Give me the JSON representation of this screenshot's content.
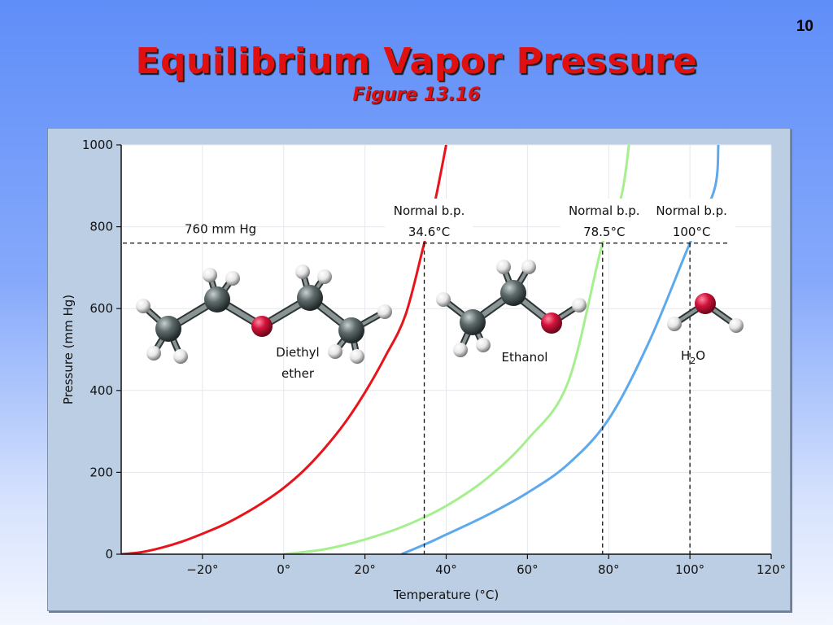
{
  "slide": {
    "number": "10",
    "title": "Equilibrium Vapor Pressure",
    "subtitle": "Figure 13.16"
  },
  "chart_data": {
    "type": "line",
    "xlabel": "Temperature (°C)",
    "ylabel": "Pressure (mm Hg)",
    "xlim": [
      -40,
      120
    ],
    "ylim": [
      0,
      1000
    ],
    "x_ticks": [
      -20,
      0,
      20,
      40,
      60,
      80,
      100,
      120
    ],
    "x_tick_labels": [
      "−20°",
      "0°",
      "20°",
      "40°",
      "60°",
      "80°",
      "100°",
      "120°"
    ],
    "y_ticks": [
      0,
      200,
      400,
      600,
      800,
      1000
    ],
    "y_tick_labels": [
      "0",
      "200",
      "400",
      "600",
      "800",
      "1000"
    ],
    "grid": true,
    "series": [
      {
        "name": "Diethyl ether",
        "color": "#e8141c",
        "points": [
          [
            -40,
            0
          ],
          [
            -35,
            5
          ],
          [
            -30,
            16
          ],
          [
            -25,
            31
          ],
          [
            -20,
            50
          ],
          [
            -15,
            71
          ],
          [
            -10,
            97
          ],
          [
            -5,
            127
          ],
          [
            0,
            162
          ],
          [
            5,
            205
          ],
          [
            10,
            258
          ],
          [
            15,
            320
          ],
          [
            20,
            395
          ],
          [
            25,
            483
          ],
          [
            30,
            585
          ],
          [
            34.6,
            760
          ],
          [
            37,
            850
          ],
          [
            40,
            1000
          ]
        ]
      },
      {
        "name": "Ethanol",
        "color": "#a6ef8e",
        "points": [
          [
            0,
            0
          ],
          [
            10,
            12
          ],
          [
            20,
            36
          ],
          [
            30,
            70
          ],
          [
            40,
            118
          ],
          [
            50,
            185
          ],
          [
            60,
            280
          ],
          [
            70,
            420
          ],
          [
            78.5,
            760
          ],
          [
            83,
            870
          ],
          [
            85,
            1000
          ]
        ]
      },
      {
        "name": "H₂O",
        "color": "#5ea8ec",
        "points": [
          [
            29,
            0
          ],
          [
            35,
            25
          ],
          [
            40,
            48
          ],
          [
            50,
            95
          ],
          [
            60,
            150
          ],
          [
            70,
            220
          ],
          [
            80,
            330
          ],
          [
            90,
            520
          ],
          [
            100,
            760
          ],
          [
            106,
            890
          ],
          [
            107,
            1000
          ]
        ]
      }
    ],
    "reference_line": {
      "y": 760,
      "label": "760 mm Hg"
    },
    "boiling_points": [
      {
        "x": 34.6,
        "label_line1": "Normal b.p.",
        "label_line2": "34.6°C"
      },
      {
        "x": 78.5,
        "label_line1": "Normal b.p.",
        "label_line2": "78.5°C"
      },
      {
        "x": 100,
        "label_line1": "Normal b.p.",
        "label_line2": "100°C"
      }
    ],
    "molecule_labels": [
      {
        "text_line1": "Diethyl",
        "text_line2": "ether"
      },
      {
        "text_line1": "Ethanol"
      },
      {
        "text_line1": "H",
        "sub": "2",
        "after": "O"
      }
    ],
    "molecule_colors": {
      "carbon": "#5e6a6a",
      "hydrogen": "#f2f2f2",
      "oxygen": "#d3133c"
    }
  }
}
